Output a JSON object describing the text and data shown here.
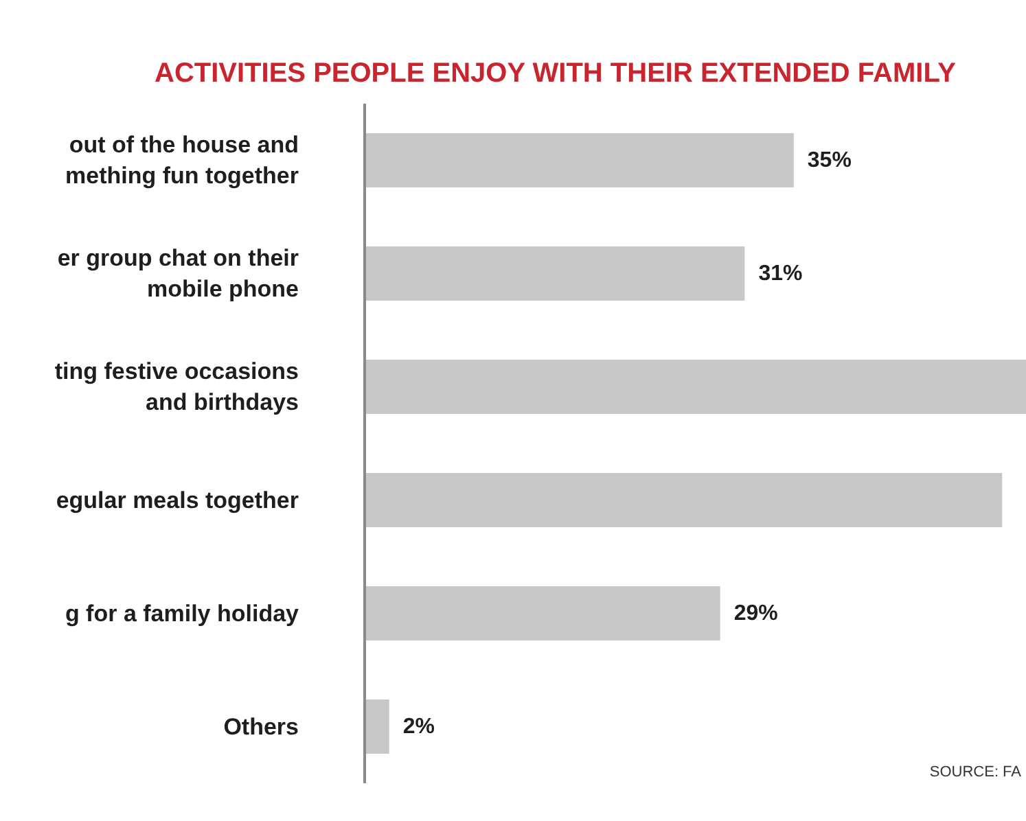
{
  "chart_data": {
    "type": "bar",
    "orientation": "horizontal",
    "title": "ACTIVITIES PEOPLE ENJOY WITH THEIR EXTENDED FAMILY",
    "categories": [
      "out of the house and\nmething fun together",
      "er group chat on their\nmobile phone",
      "ting festive occasions\nand birthdays",
      "egular meals together",
      "g for a family holiday",
      "Others"
    ],
    "values": [
      35,
      31,
      54,
      52,
      29,
      2
    ],
    "color": "#c8c8c8",
    "value_labels": [
      "35%",
      "31%",
      null,
      null,
      "29%",
      "2%"
    ],
    "annotations": [
      "SOURCE: FA"
    ]
  }
}
